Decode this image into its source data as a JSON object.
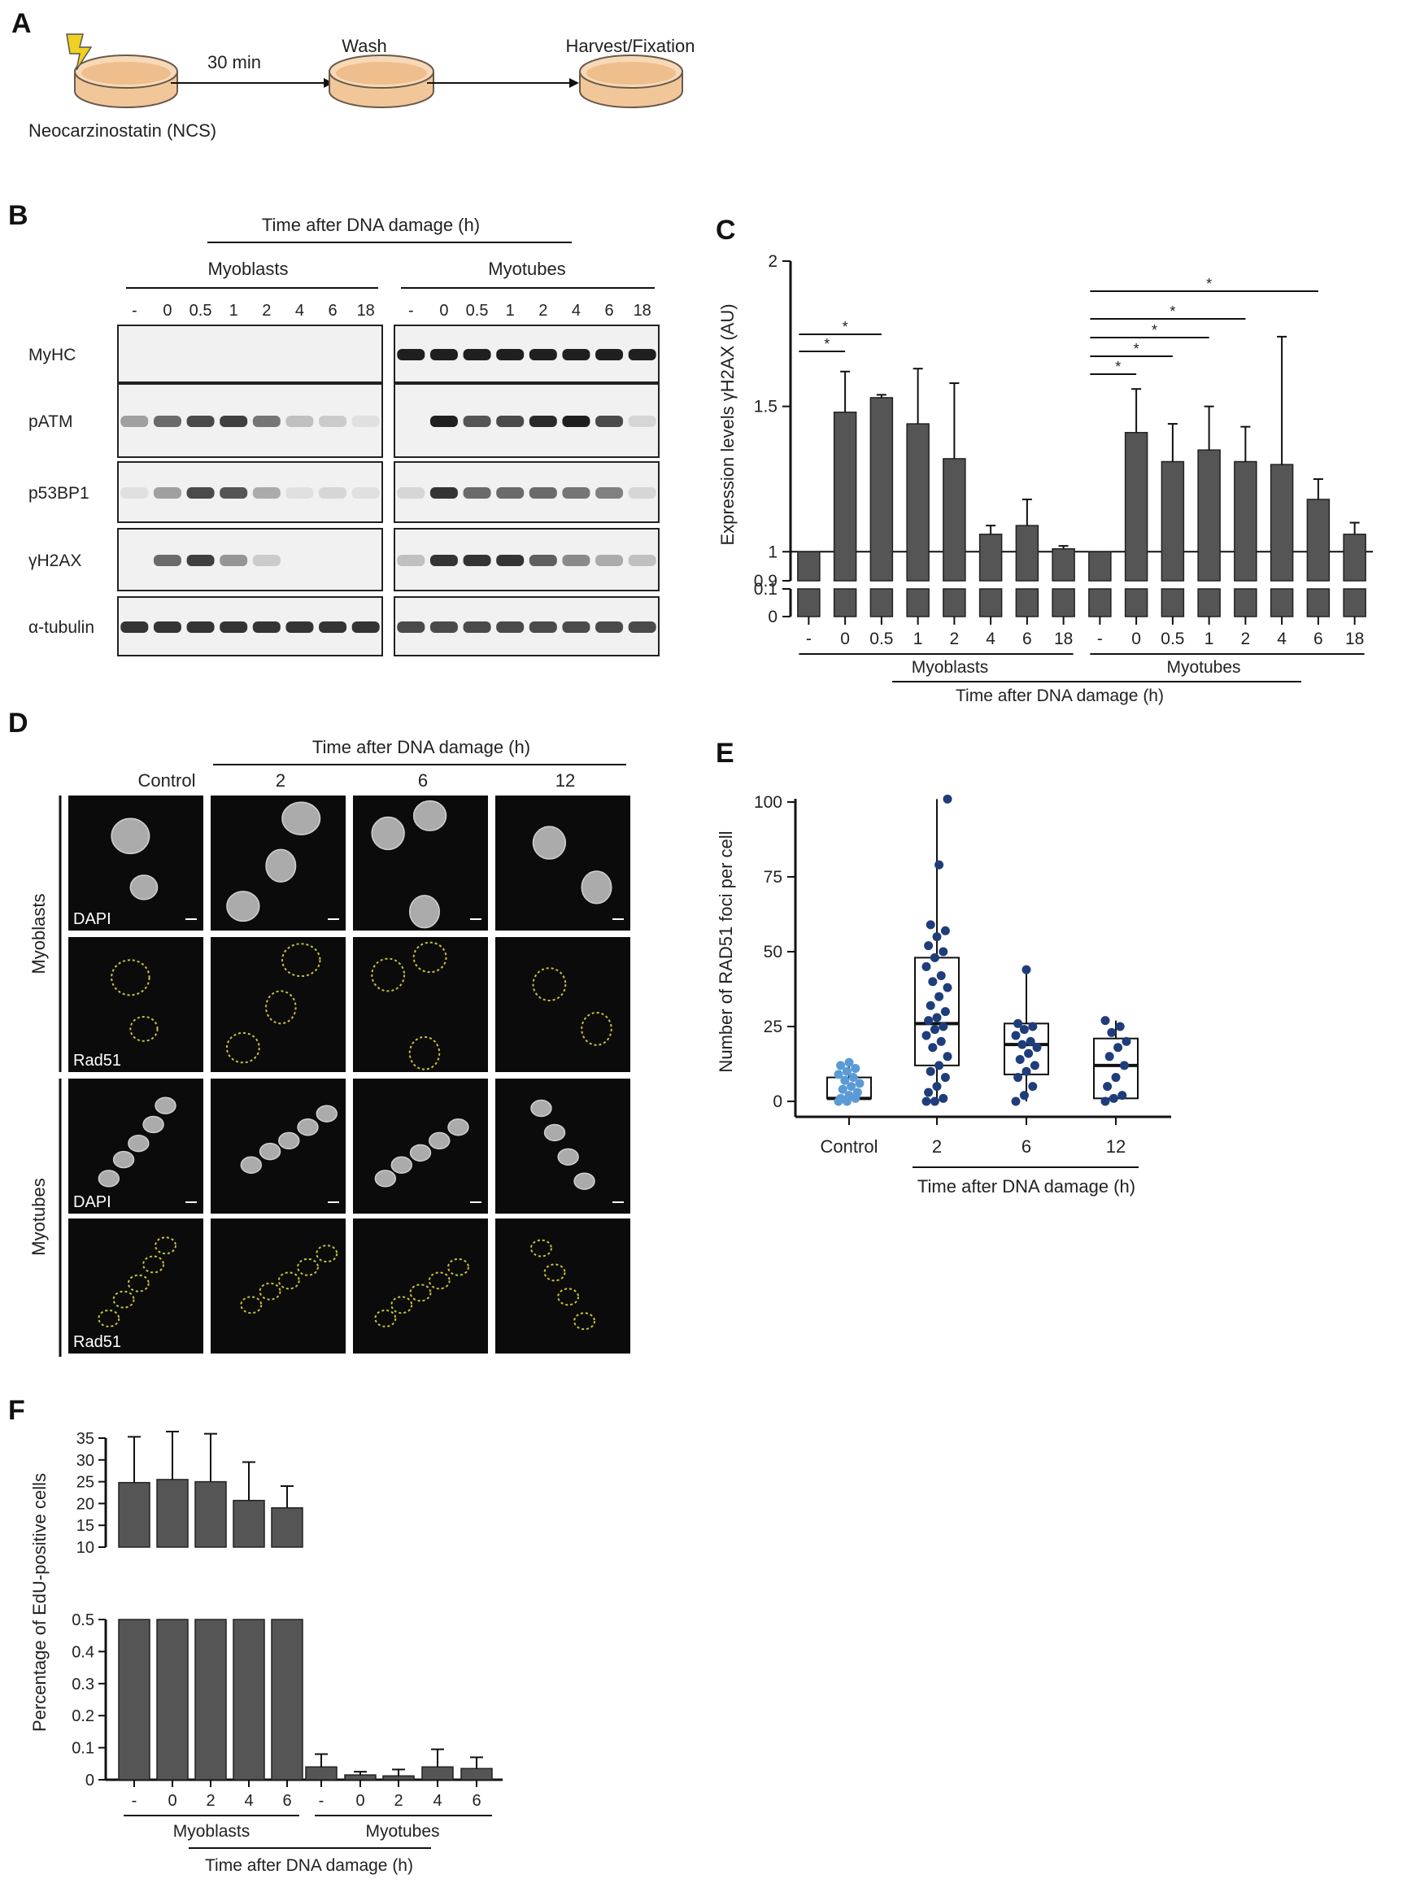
{
  "panels": {
    "A": {
      "letter": "A",
      "treatment": "Neocarzinostatin (NCS)",
      "step_time": "30 min",
      "wash": "Wash",
      "harvest": "Harvest/Fixation"
    },
    "B": {
      "letter": "B",
      "header": "Time after DNA damage (h)",
      "group_left": "Myoblasts",
      "group_right": "Myotubes",
      "lanes": [
        "-",
        "0",
        "0.5",
        "1",
        "2",
        "4",
        "6",
        "18"
      ],
      "rows": [
        "MyHC",
        "pATM",
        "p53BP1",
        "γH2AX",
        "α-tubulin"
      ],
      "intensity_myoblasts": {
        "MyHC": [
          0,
          0,
          0,
          0,
          0,
          0,
          0,
          0
        ],
        "pATM": [
          0.35,
          0.6,
          0.75,
          0.8,
          0.55,
          0.2,
          0.15,
          0.05
        ],
        "p53BP1": [
          0.05,
          0.35,
          0.75,
          0.7,
          0.3,
          0.05,
          0.1,
          0.05
        ],
        "γH2AX": [
          0,
          0.6,
          0.8,
          0.4,
          0.15,
          0,
          0,
          0
        ],
        "α-tubulin": [
          0.85,
          0.85,
          0.85,
          0.85,
          0.85,
          0.85,
          0.85,
          0.85
        ]
      },
      "intensity_myotubes": {
        "MyHC": [
          0.95,
          0.95,
          0.95,
          0.95,
          0.95,
          0.95,
          0.95,
          0.95
        ],
        "pATM": [
          0,
          0.95,
          0.7,
          0.75,
          0.9,
          0.95,
          0.75,
          0.1
        ],
        "p53BP1": [
          0.1,
          0.85,
          0.6,
          0.6,
          0.6,
          0.55,
          0.5,
          0.1
        ],
        "γH2AX": [
          0.2,
          0.85,
          0.85,
          0.85,
          0.65,
          0.45,
          0.3,
          0.2
        ],
        "α-tubulin": [
          0.75,
          0.75,
          0.75,
          0.75,
          0.75,
          0.75,
          0.75,
          0.75
        ]
      }
    },
    "C": {
      "letter": "C"
    },
    "D": {
      "letter": "D",
      "header": "Time after DNA damage (h)",
      "columns": [
        "Control",
        "2",
        "6",
        "12"
      ],
      "row_group_top": "Myoblasts",
      "row_group_bottom": "Myotubes",
      "stain_dapi": "DAPI",
      "stain_rad51": "Rad51"
    },
    "E": {
      "letter": "E"
    },
    "F": {
      "letter": "F"
    }
  },
  "chart_data": [
    {
      "panel": "C",
      "type": "bar",
      "ylabel": "Expression levels γH2AX (AU)",
      "axis_break": true,
      "ylim_upper": [
        0.9,
        2.0
      ],
      "ylim_lower": [
        0,
        0.1
      ],
      "yticks": [
        "2",
        "1.5",
        "1",
        "0.9",
        "0.1",
        "0"
      ],
      "reference_line": 1,
      "categories": [
        "-",
        "0",
        "0.5",
        "1",
        "2",
        "4",
        "6",
        "18",
        "-",
        "0",
        "0.5",
        "1",
        "2",
        "4",
        "6",
        "18"
      ],
      "values": [
        1.0,
        1.48,
        1.53,
        1.44,
        1.32,
        1.06,
        1.09,
        1.01,
        1.0,
        1.41,
        1.31,
        1.35,
        1.31,
        1.3,
        1.18,
        1.06
      ],
      "errors": [
        0,
        0.14,
        0.01,
        0.19,
        0.26,
        0.03,
        0.09,
        0.01,
        0,
        0.15,
        0.13,
        0.15,
        0.12,
        0.44,
        0.07,
        0.04
      ],
      "groups": [
        "Myoblasts",
        "Myotubes"
      ],
      "xlabel": "Time after DNA damage (h)",
      "significance_marker": "*",
      "significance": [
        {
          "from": 0,
          "to": 1
        },
        {
          "from": 0,
          "to": 2
        },
        {
          "from": 8,
          "to": 9
        },
        {
          "from": 8,
          "to": 10
        },
        {
          "from": 8,
          "to": 11
        },
        {
          "from": 8,
          "to": 12
        },
        {
          "from": 8,
          "to": 14
        }
      ]
    },
    {
      "panel": "E",
      "type": "scatter",
      "ylabel": "Number of RAD51 foci per cell",
      "xlabel": "Time after DNA damage (h)",
      "categories": [
        "Control",
        "2",
        "6",
        "12"
      ],
      "ylim": [
        0,
        100
      ],
      "yticks": [
        "0",
        "25",
        "50",
        "75",
        "100"
      ],
      "boxes": [
        {
          "q1": 1,
          "median": 1,
          "q3": 8,
          "min": 0,
          "max": 13
        },
        {
          "q1": 12,
          "median": 26,
          "q3": 48,
          "min": 0,
          "max": 101
        },
        {
          "q1": 9,
          "median": 19,
          "q3": 26,
          "min": 0,
          "max": 44
        },
        {
          "q1": 1,
          "median": 12,
          "q3": 21,
          "min": 0,
          "max": 27
        }
      ],
      "points": [
        [
          0,
          0,
          1,
          1,
          2,
          3,
          4,
          5,
          6,
          7,
          8,
          9,
          10,
          11,
          12,
          13
        ],
        [
          0,
          0,
          1,
          3,
          5,
          8,
          10,
          12,
          15,
          18,
          20,
          22,
          24,
          25,
          27,
          28,
          30,
          32,
          35,
          38,
          40,
          42,
          45,
          48,
          50,
          52,
          55,
          57,
          59,
          79,
          101
        ],
        [
          0,
          2,
          5,
          8,
          10,
          12,
          14,
          16,
          18,
          19,
          20,
          22,
          24,
          25,
          26,
          44
        ],
        [
          0,
          1,
          2,
          5,
          8,
          12,
          15,
          18,
          20,
          23,
          25,
          27
        ]
      ],
      "colors": [
        "#5b9bd5",
        "#1f3d7a",
        "#1f3d7a",
        "#1f3d7a"
      ]
    },
    {
      "panel": "F",
      "type": "bar",
      "ylabel": "Percentage of EdU-positive cells",
      "axis_break": true,
      "ylim_upper": [
        10,
        35
      ],
      "ylim_lower": [
        0,
        0.5
      ],
      "yticks_upper": [
        "35",
        "30",
        "25",
        "20",
        "15",
        "10"
      ],
      "yticks_lower": [
        "0.5",
        "0.4",
        "0.3",
        "0.2",
        "0.1",
        "0"
      ],
      "categories": [
        "-",
        "0",
        "2",
        "4",
        "6",
        "-",
        "0",
        "2",
        "4",
        "6"
      ],
      "values": [
        24.8,
        25.5,
        25.0,
        20.7,
        19.0,
        0.04,
        0.015,
        0.012,
        0.04,
        0.035
      ],
      "errors": [
        10.5,
        11.0,
        11.0,
        8.8,
        5.0,
        0.04,
        0.01,
        0.02,
        0.055,
        0.035
      ],
      "groups": [
        "Myoblasts",
        "Myotubes"
      ],
      "xlabel": "Time after DNA damage (h)"
    }
  ]
}
